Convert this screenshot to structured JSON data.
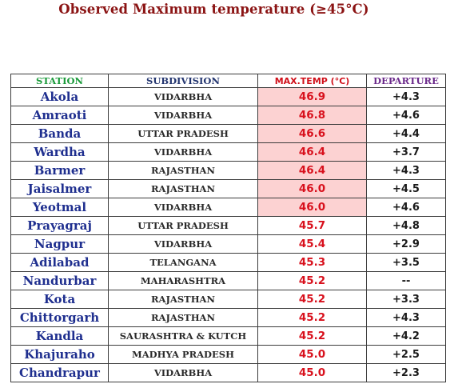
{
  "title": "Observed Maximum temperature (≥45°C)",
  "headers": {
    "station": "STATION",
    "subdivision": "SUBDIVISION",
    "max_temp": "MAX.TEMP (°C)",
    "departure": "DEPARTURE"
  },
  "colors": {
    "title": "#8b1414",
    "highlight": "#fcd2d2",
    "temp_text": "#d8101c",
    "station_text": "#1f2f8f"
  },
  "rows": [
    {
      "station": "Akola",
      "subdivision": "VIDARBHA",
      "max_temp": "46.9",
      "departure": "+4.3",
      "highlight": true
    },
    {
      "station": "Amraoti",
      "subdivision": "VIDARBHA",
      "max_temp": "46.8",
      "departure": "+4.6",
      "highlight": true
    },
    {
      "station": "Banda",
      "subdivision": "UTTAR PRADESH",
      "max_temp": "46.6",
      "departure": "+4.4",
      "highlight": true
    },
    {
      "station": "Wardha",
      "subdivision": "VIDARBHA",
      "max_temp": "46.4",
      "departure": "+3.7",
      "highlight": true
    },
    {
      "station": "Barmer",
      "subdivision": "RAJASTHAN",
      "max_temp": "46.4",
      "departure": "+4.3",
      "highlight": true
    },
    {
      "station": "Jaisalmer",
      "subdivision": "RAJASTHAN",
      "max_temp": "46.0",
      "departure": "+4.5",
      "highlight": true
    },
    {
      "station": "Yeotmal",
      "subdivision": "VIDARBHA",
      "max_temp": "46.0",
      "departure": "+4.6",
      "highlight": true
    },
    {
      "station": "Prayagraj",
      "subdivision": "UTTAR PRADESH",
      "max_temp": "45.7",
      "departure": "+4.8",
      "highlight": false
    },
    {
      "station": "Nagpur",
      "subdivision": "VIDARBHA",
      "max_temp": "45.4",
      "departure": "+2.9",
      "highlight": false
    },
    {
      "station": "Adilabad",
      "subdivision": "TELANGANA",
      "max_temp": "45.3",
      "departure": "+3.5",
      "highlight": false
    },
    {
      "station": "Nandurbar",
      "subdivision": "MAHARASHTRA",
      "max_temp": "45.2",
      "departure": "--",
      "highlight": false
    },
    {
      "station": "Kota",
      "subdivision": "RAJASTHAN",
      "max_temp": "45.2",
      "departure": "+3.3",
      "highlight": false
    },
    {
      "station": "Chittorgarh",
      "subdivision": "RAJASTHAN",
      "max_temp": "45.2",
      "departure": "+4.3",
      "highlight": false
    },
    {
      "station": "Kandla",
      "subdivision": "SAURASHTRA & KUTCH",
      "max_temp": "45.2",
      "departure": "+4.2",
      "highlight": false
    },
    {
      "station": "Khajuraho",
      "subdivision": "MADHYA PRADESH",
      "max_temp": "45.0",
      "departure": "+2.5",
      "highlight": false
    },
    {
      "station": "Chandrapur",
      "subdivision": "VIDARBHA",
      "max_temp": "45.0",
      "departure": "+2.3",
      "highlight": false
    }
  ]
}
